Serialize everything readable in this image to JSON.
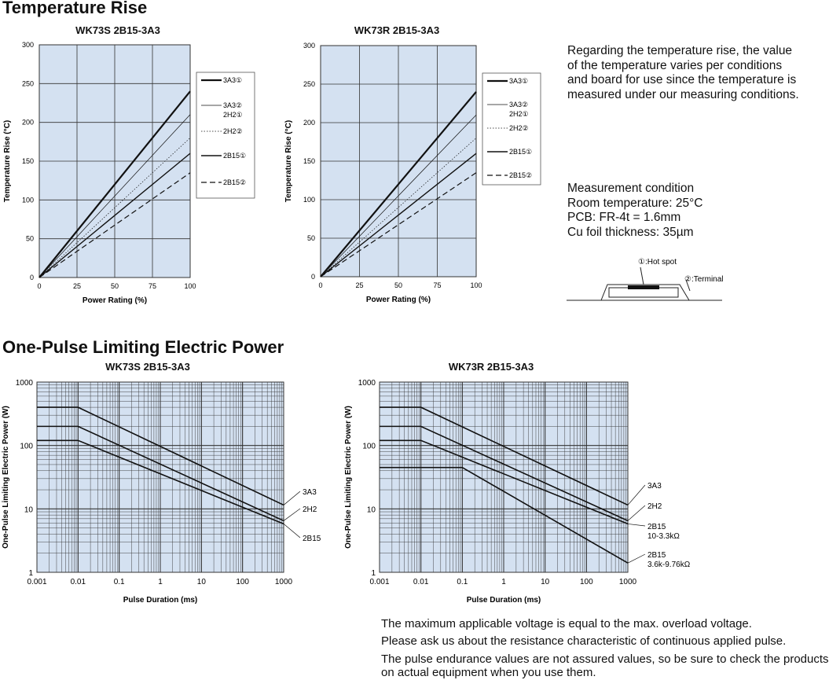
{
  "sections": {
    "temperature_rise_heading": "Temperature Rise",
    "one_pulse_heading": "One-Pulse Limiting Electric Power"
  },
  "side_text": {
    "paragraph": "Regarding the temperature rise, the value of the temperature varies per conditions and board for use since the temperature is measured under our measuring conditions.",
    "measurement_lines": [
      "Measurement condition",
      "Room temperature: 25°C",
      "PCB: FR-4t = 1.6mm",
      "Cu foil thickness: 35µm"
    ]
  },
  "diagram": {
    "hot_spot_label": "①:Hot spot",
    "terminal_label": "②:Terminal"
  },
  "notes": [
    "The maximum applicable voltage is equal to the max. overload voltage.",
    "Please ask us about the resistance characteristic of continuous applied pulse.",
    "The pulse endurance values are not assured values, so be sure to check the products on actual equipment when you use them."
  ],
  "colors": {
    "plot_bg": "#d4e1f1",
    "grid": "#333333",
    "line": "#111111"
  },
  "chart_data": [
    {
      "type": "line",
      "title": "WK73S 2B15-3A3",
      "xlabel": "Power Rating (%)",
      "ylabel": "Temperature Rise (°C)",
      "xlim": [
        0,
        100
      ],
      "ylim": [
        0,
        300
      ],
      "x_ticks": [
        0,
        25,
        50,
        75,
        100
      ],
      "y_ticks": [
        0,
        50,
        100,
        150,
        200,
        250,
        300
      ],
      "grid": true,
      "legend_position": "right",
      "series": [
        {
          "name": "3A3①",
          "style": "thick",
          "x": [
            0,
            100
          ],
          "y": [
            0,
            240
          ]
        },
        {
          "name": "3A3② 2H2①",
          "style": "thin",
          "x": [
            0,
            100
          ],
          "y": [
            0,
            210
          ]
        },
        {
          "name": "2H2②",
          "style": "dotted",
          "x": [
            0,
            100
          ],
          "y": [
            0,
            180
          ]
        },
        {
          "name": "2B15①",
          "style": "medium",
          "x": [
            0,
            100
          ],
          "y": [
            0,
            160
          ]
        },
        {
          "name": "2B15②",
          "style": "dashed",
          "x": [
            0,
            100
          ],
          "y": [
            0,
            135
          ]
        }
      ]
    },
    {
      "type": "line",
      "title": "WK73R 2B15-3A3",
      "xlabel": "Power Rating (%)",
      "ylabel": "Temperature Rise (°C)",
      "xlim": [
        0,
        100
      ],
      "ylim": [
        0,
        300
      ],
      "x_ticks": [
        0,
        25,
        50,
        75,
        100
      ],
      "y_ticks": [
        0,
        50,
        100,
        150,
        200,
        250,
        300
      ],
      "grid": true,
      "legend_position": "right",
      "series": [
        {
          "name": "3A3①",
          "style": "thick",
          "x": [
            0,
            100
          ],
          "y": [
            0,
            240
          ]
        },
        {
          "name": "3A3② 2H2①",
          "style": "thin",
          "x": [
            0,
            100
          ],
          "y": [
            0,
            210
          ]
        },
        {
          "name": "2H2②",
          "style": "dotted",
          "x": [
            0,
            100
          ],
          "y": [
            0,
            180
          ]
        },
        {
          "name": "2B15①",
          "style": "medium",
          "x": [
            0,
            100
          ],
          "y": [
            0,
            160
          ]
        },
        {
          "name": "2B15②",
          "style": "dashed",
          "x": [
            0,
            100
          ],
          "y": [
            0,
            135
          ]
        }
      ]
    },
    {
      "type": "line",
      "title": "WK73S 2B15-3A3",
      "xlabel": "Pulse Duration (ms)",
      "ylabel": "One-Pulse Limiting Electric Power (W)",
      "x_scale": "log",
      "y_scale": "log",
      "xlim": [
        0.001,
        1000
      ],
      "ylim": [
        1,
        1000
      ],
      "x_ticks": [
        "0.001",
        "0.01",
        "0.1",
        "1",
        "10",
        "100",
        "1000"
      ],
      "y_ticks": [
        "1",
        "10",
        "100",
        "1000"
      ],
      "grid": true,
      "series": [
        {
          "name": "3A3",
          "x": [
            0.001,
            0.01,
            1000
          ],
          "y": [
            400,
            400,
            11.5
          ]
        },
        {
          "name": "2H2",
          "x": [
            0.001,
            0.01,
            1000
          ],
          "y": [
            200,
            200,
            6.5
          ]
        },
        {
          "name": "2B15",
          "x": [
            0.001,
            0.01,
            1000
          ],
          "y": [
            120,
            120,
            5.8
          ]
        }
      ]
    },
    {
      "type": "line",
      "title": "WK73R 2B15-3A3",
      "xlabel": "Pulse Duration (ms)",
      "ylabel": "One-Pulse Limiting Electric Power (W)",
      "x_scale": "log",
      "y_scale": "log",
      "xlim": [
        0.001,
        1000
      ],
      "ylim": [
        1,
        1000
      ],
      "x_ticks": [
        "0.001",
        "0.01",
        "0.1",
        "1",
        "10",
        "100",
        "1000"
      ],
      "y_ticks": [
        "1",
        "10",
        "100",
        "1000"
      ],
      "grid": true,
      "series": [
        {
          "name": "3A3",
          "x": [
            0.001,
            0.01,
            1000
          ],
          "y": [
            400,
            400,
            11.5
          ]
        },
        {
          "name": "2H2",
          "x": [
            0.001,
            0.01,
            1000
          ],
          "y": [
            200,
            200,
            6.5
          ]
        },
        {
          "name": "2B15 10-3.3kΩ",
          "x": [
            0.001,
            0.01,
            1000
          ],
          "y": [
            120,
            120,
            5.8
          ]
        },
        {
          "name": "2B15 3.6k-9.76kΩ",
          "x": [
            0.001,
            0.1,
            1000
          ],
          "y": [
            45,
            45,
            1.4
          ]
        }
      ]
    }
  ]
}
